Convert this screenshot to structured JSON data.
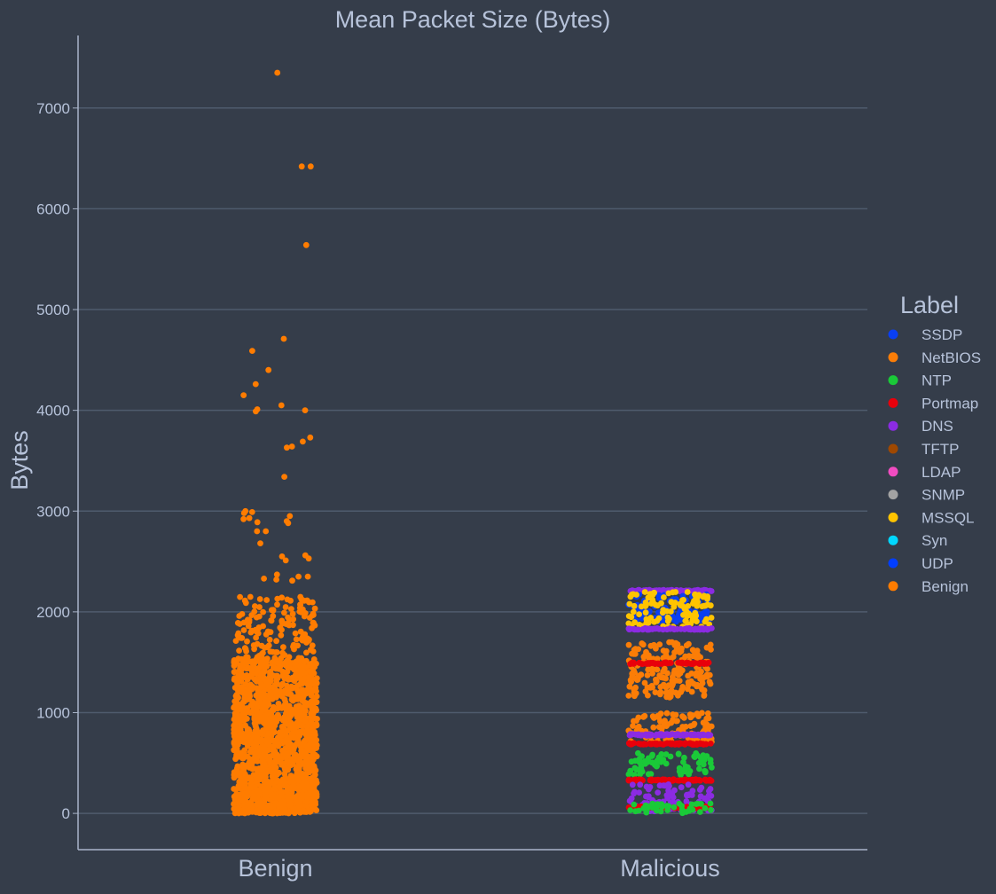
{
  "colors": {
    "background": "#353d4a",
    "grid": "#4f5b6d",
    "axis": "#a9b4c9",
    "text": "#b7c3da",
    "palette": {
      "SSDP": "#0a3ff2",
      "NetBIOS": "#fb7d07",
      "NTP": "#1ac938",
      "Portmap": "#e8000b",
      "DNS": "#8b2be2",
      "TFTP": "#9f4800",
      "LDAP": "#f14cc1",
      "SNMP": "#a3a3a3",
      "MSSQL": "#ffc400",
      "Syn": "#00d7ff",
      "UDP": "#023eff",
      "Benign": "#ff7c00"
    }
  },
  "chart_data": {
    "type": "scatter",
    "subtype": "strip",
    "title": "Mean Packet Size (Bytes)",
    "xlabel": "",
    "ylabel": "Bytes",
    "categories": [
      "Benign",
      "Malicious"
    ],
    "ylim": [
      -360,
      7720
    ],
    "yticks": [
      0,
      1000,
      2000,
      3000,
      4000,
      5000,
      6000,
      7000
    ],
    "grid": "horizontal",
    "legend": {
      "title": "Label",
      "placement": "right",
      "entries": [
        "SSDP",
        "NetBIOS",
        "NTP",
        "Portmap",
        "DNS",
        "TFTP",
        "LDAP",
        "SNMP",
        "MSSQL",
        "Syn",
        "UDP",
        "Benign"
      ]
    },
    "series": [
      {
        "name": "Benign",
        "category": "Benign",
        "dense_range": [
          0,
          1550
        ],
        "scatter_range": [
          1550,
          2150
        ],
        "outliers": [
          7350,
          6420,
          6420,
          5640,
          4710,
          4590,
          4400,
          4260,
          4150,
          4050,
          4010,
          4000,
          3990,
          3730,
          3690,
          3640,
          3630,
          3340,
          3000,
          2990,
          2980,
          2950,
          2930,
          2920,
          2900,
          2890,
          2880,
          2800,
          2800,
          2680,
          2560,
          2550,
          2530,
          2510,
          2370,
          2350,
          2350,
          2330,
          2320,
          2310
        ]
      },
      {
        "name": "Malicious",
        "category": "Malicious",
        "bands": [
          {
            "label": "DNS",
            "y": 2210
          },
          {
            "label": "SSDP",
            "range": [
              1900,
              2180
            ]
          },
          {
            "label": "MSSQL",
            "range": [
              1850,
              2200
            ]
          },
          {
            "label": "DNS",
            "y": 1830
          },
          {
            "label": "NetBIOS",
            "range": [
              1150,
              1700
            ]
          },
          {
            "label": "Portmap",
            "y": 1490
          },
          {
            "label": "NetBIOS",
            "range": [
              700,
              1000
            ]
          },
          {
            "label": "DNS",
            "y": 780
          },
          {
            "label": "Portmap",
            "y": 690
          },
          {
            "label": "NTP",
            "range": [
              380,
              600
            ]
          },
          {
            "label": "Portmap",
            "y": 330
          },
          {
            "label": "DNS",
            "range": [
              20,
              290
            ]
          },
          {
            "label": "Portmap",
            "y": 60
          },
          {
            "label": "NTP",
            "range": [
              0,
              100
            ]
          }
        ]
      }
    ]
  }
}
